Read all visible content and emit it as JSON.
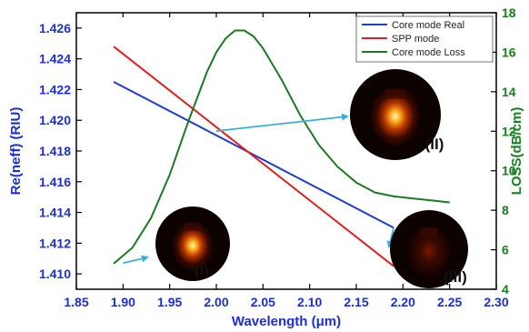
{
  "chart_data": {
    "type": "line",
    "xlabel": "Wavelength (μm)",
    "ylabel_left": "Re(neff) (RIU)",
    "ylabel_right": "LOSS(dB/cm)",
    "xlim": [
      1.85,
      2.3
    ],
    "ylim_left": [
      1.409,
      1.427
    ],
    "ylim_right": [
      4,
      18
    ],
    "x_ticks": [
      "1.85",
      "1.90",
      "1.95",
      "2.00",
      "2.05",
      "2.10",
      "2.15",
      "2.20",
      "2.25",
      "2.30"
    ],
    "y_ticks_left": [
      "1.410",
      "1.412",
      "1.414",
      "1.416",
      "1.418",
      "1.420",
      "1.422",
      "1.424",
      "1.426"
    ],
    "y_ticks_right": [
      "4",
      "6",
      "8",
      "10",
      "12",
      "14",
      "16",
      "18"
    ],
    "legend_position": "top-right",
    "colors": {
      "left_axis": "#1c2fd6",
      "right_axis": "#15801c"
    },
    "series": [
      {
        "name": "Core mode Real",
        "color": "#1f3ad6",
        "axis": "left",
        "x": [
          1.89,
          2.19
        ],
        "y": [
          1.4225,
          1.413
        ]
      },
      {
        "name": "SPP mode",
        "color": "#e02020",
        "axis": "left",
        "x": [
          1.89,
          2.19
        ],
        "y": [
          1.4248,
          1.4105
        ]
      },
      {
        "name": "Core mode Loss",
        "color": "#1b7a22",
        "axis": "right",
        "x": [
          1.89,
          1.91,
          1.93,
          1.95,
          1.97,
          1.99,
          2.0,
          2.01,
          2.02,
          2.03,
          2.04,
          2.05,
          2.07,
          2.09,
          2.11,
          2.13,
          2.15,
          2.17,
          2.19,
          2.21,
          2.23,
          2.25
        ],
        "y": [
          5.3,
          6.1,
          7.6,
          9.8,
          12.5,
          15.0,
          16.0,
          16.7,
          17.1,
          17.1,
          16.8,
          16.2,
          14.6,
          12.8,
          11.3,
          10.2,
          9.4,
          8.9,
          8.7,
          8.6,
          8.5,
          8.4
        ]
      }
    ],
    "insets": [
      {
        "label": "(I)",
        "points_to": [
          1.9,
          1.4107
        ]
      },
      {
        "label": "(II)",
        "points_to": [
          2.0,
          1.4193
        ]
      },
      {
        "label": "(III)",
        "points_to": [
          2.19,
          1.413
        ]
      }
    ]
  }
}
